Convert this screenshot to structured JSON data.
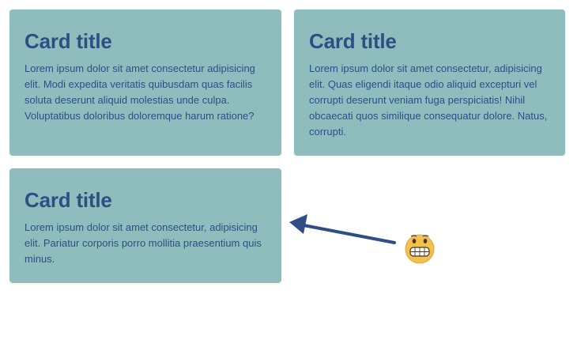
{
  "cards": [
    {
      "title": "Card title",
      "body": "Lorem ipsum dolor sit amet consectetur adipisicing elit. Modi expedita veritatis quibusdam quas facilis soluta deserunt aliquid molestias unde culpa. Voluptatibus doloribus doloremque harum ratione?"
    },
    {
      "title": "Card title",
      "body": "Lorem ipsum dolor sit amet consectetur, adipisicing elit. Quas eligendi itaque odio aliquid excepturi vel corrupti deserunt veniam fuga perspiciatis! Nihil obcaecati quos similique consequatur dolore. Natus, corrupti."
    },
    {
      "title": "Card title",
      "body": "Lorem ipsum dolor sit amet consectetur, adipisicing elit. Pariatur corporis porro mollitia praesentium quis minus."
    }
  ],
  "colors": {
    "card_background": "#8fbdbe",
    "text": "#2e4e84",
    "arrow": "#2e4e84",
    "page_background": "#ffffff"
  },
  "icons": {
    "emoji": "grimacing-face-icon",
    "arrow": "arrow-left-icon"
  }
}
